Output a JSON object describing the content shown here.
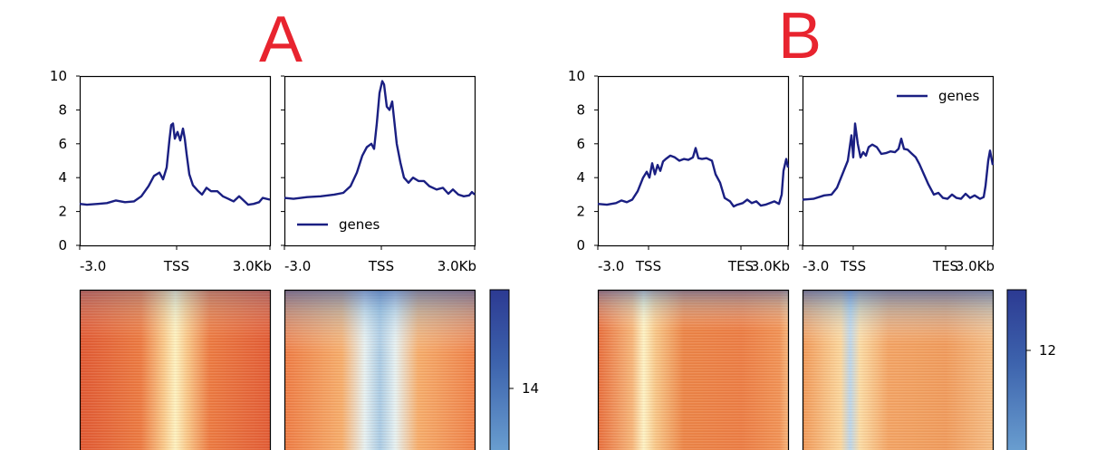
{
  "panels": [
    {
      "label": "A",
      "colorbar_tick": "14",
      "plots": [
        {
          "legend": "",
          "mode": "tss",
          "x_ticks": [
            "-3.0",
            "TSS",
            "3.0Kb"
          ],
          "profile": [
            [
              0,
              2.45
            ],
            [
              8,
              2.4
            ],
            [
              20,
              2.45
            ],
            [
              30,
              2.5
            ],
            [
              40,
              2.65
            ],
            [
              50,
              2.55
            ],
            [
              60,
              2.6
            ],
            [
              68,
              2.9
            ],
            [
              76,
              3.5
            ],
            [
              82,
              4.1
            ],
            [
              88,
              4.3
            ],
            [
              92,
              3.9
            ],
            [
              96,
              4.6
            ],
            [
              99,
              6.2
            ],
            [
              101,
              7.1
            ],
            [
              103,
              7.2
            ],
            [
              105,
              6.3
            ],
            [
              108,
              6.7
            ],
            [
              111,
              6.2
            ],
            [
              114,
              6.9
            ],
            [
              116,
              6.3
            ],
            [
              118,
              5.4
            ],
            [
              121,
              4.2
            ],
            [
              125,
              3.55
            ],
            [
              130,
              3.25
            ],
            [
              135,
              3.0
            ],
            [
              140,
              3.4
            ],
            [
              145,
              3.2
            ],
            [
              152,
              3.2
            ],
            [
              158,
              2.9
            ],
            [
              164,
              2.75
            ],
            [
              170,
              2.6
            ],
            [
              176,
              2.9
            ],
            [
              180,
              2.7
            ],
            [
              186,
              2.4
            ],
            [
              192,
              2.45
            ],
            [
              198,
              2.55
            ],
            [
              202,
              2.8
            ],
            [
              210,
              2.7
            ]
          ]
        },
        {
          "legend": "genes",
          "mode": "tss",
          "x_ticks": [
            "-3.0",
            "TSS",
            "3.0Kb"
          ],
          "profile": [
            [
              0,
              2.8
            ],
            [
              10,
              2.75
            ],
            [
              25,
              2.85
            ],
            [
              40,
              2.9
            ],
            [
              55,
              3.0
            ],
            [
              65,
              3.1
            ],
            [
              73,
              3.5
            ],
            [
              80,
              4.3
            ],
            [
              86,
              5.3
            ],
            [
              91,
              5.8
            ],
            [
              96,
              6.0
            ],
            [
              99,
              5.7
            ],
            [
              102,
              7.2
            ],
            [
              105,
              9.0
            ],
            [
              108,
              9.7
            ],
            [
              110,
              9.5
            ],
            [
              113,
              8.2
            ],
            [
              116,
              8.0
            ],
            [
              119,
              8.5
            ],
            [
              121,
              7.5
            ],
            [
              124,
              6.0
            ],
            [
              128,
              4.9
            ],
            [
              132,
              4.0
            ],
            [
              137,
              3.7
            ],
            [
              142,
              4.0
            ],
            [
              148,
              3.8
            ],
            [
              154,
              3.8
            ],
            [
              160,
              3.5
            ],
            [
              168,
              3.3
            ],
            [
              175,
              3.4
            ],
            [
              181,
              3.05
            ],
            [
              186,
              3.3
            ],
            [
              192,
              3.0
            ],
            [
              198,
              2.9
            ],
            [
              204,
              2.95
            ],
            [
              207,
              3.15
            ],
            [
              210,
              3.0
            ]
          ]
        }
      ]
    },
    {
      "label": "B",
      "colorbar_tick": "12",
      "plots": [
        {
          "legend": "",
          "mode": "tes",
          "x_ticks": [
            "-3.0",
            "TSS",
            "TES",
            "3.0Kb"
          ],
          "profile": [
            [
              0,
              2.45
            ],
            [
              10,
              2.4
            ],
            [
              20,
              2.5
            ],
            [
              26,
              2.65
            ],
            [
              32,
              2.55
            ],
            [
              38,
              2.7
            ],
            [
              44,
              3.2
            ],
            [
              50,
              4.0
            ],
            [
              54,
              4.35
            ],
            [
              57,
              4.0
            ],
            [
              60,
              4.85
            ],
            [
              63,
              4.2
            ],
            [
              66,
              4.75
            ],
            [
              69,
              4.4
            ],
            [
              72,
              4.95
            ],
            [
              75,
              5.1
            ],
            [
              80,
              5.3
            ],
            [
              85,
              5.2
            ],
            [
              90,
              5.0
            ],
            [
              95,
              5.1
            ],
            [
              100,
              5.05
            ],
            [
              105,
              5.2
            ],
            [
              108,
              5.75
            ],
            [
              111,
              5.15
            ],
            [
              115,
              5.1
            ],
            [
              120,
              5.15
            ],
            [
              126,
              5.0
            ],
            [
              130,
              4.2
            ],
            [
              135,
              3.7
            ],
            [
              140,
              2.8
            ],
            [
              146,
              2.6
            ],
            [
              150,
              2.3
            ],
            [
              154,
              2.4
            ],
            [
              160,
              2.5
            ],
            [
              165,
              2.7
            ],
            [
              170,
              2.5
            ],
            [
              175,
              2.6
            ],
            [
              180,
              2.35
            ],
            [
              185,
              2.4
            ],
            [
              190,
              2.5
            ],
            [
              195,
              2.6
            ],
            [
              200,
              2.45
            ],
            [
              203,
              3.0
            ],
            [
              205,
              4.4
            ],
            [
              208,
              5.1
            ],
            [
              210,
              4.6
            ]
          ]
        },
        {
          "legend": "genes",
          "mode": "tes",
          "x_ticks": [
            "-3.0",
            "TSS",
            "TES",
            "3.0Kb"
          ],
          "profile": [
            [
              0,
              2.7
            ],
            [
              12,
              2.75
            ],
            [
              24,
              2.95
            ],
            [
              32,
              3.0
            ],
            [
              38,
              3.4
            ],
            [
              44,
              4.2
            ],
            [
              50,
              5.0
            ],
            [
              54,
              6.5
            ],
            [
              56,
              5.2
            ],
            [
              58,
              7.2
            ],
            [
              61,
              6.0
            ],
            [
              64,
              5.2
            ],
            [
              67,
              5.5
            ],
            [
              70,
              5.3
            ],
            [
              73,
              5.8
            ],
            [
              77,
              5.95
            ],
            [
              82,
              5.8
            ],
            [
              87,
              5.4
            ],
            [
              92,
              5.45
            ],
            [
              97,
              5.55
            ],
            [
              102,
              5.5
            ],
            [
              106,
              5.7
            ],
            [
              109,
              6.3
            ],
            [
              112,
              5.7
            ],
            [
              116,
              5.65
            ],
            [
              120,
              5.45
            ],
            [
              125,
              5.2
            ],
            [
              129,
              4.8
            ],
            [
              134,
              4.2
            ],
            [
              139,
              3.6
            ],
            [
              145,
              3.0
            ],
            [
              150,
              3.1
            ],
            [
              155,
              2.8
            ],
            [
              160,
              2.75
            ],
            [
              165,
              3.0
            ],
            [
              170,
              2.8
            ],
            [
              175,
              2.75
            ],
            [
              180,
              3.05
            ],
            [
              185,
              2.8
            ],
            [
              190,
              2.95
            ],
            [
              196,
              2.75
            ],
            [
              200,
              2.85
            ],
            [
              202,
              3.5
            ],
            [
              205,
              5.0
            ],
            [
              207,
              5.6
            ],
            [
              210,
              4.75
            ]
          ]
        }
      ]
    }
  ],
  "y_ticks": [
    "0",
    "2",
    "4",
    "6",
    "8",
    "10"
  ],
  "colors": {
    "line": "#1a1f82",
    "label": "#e8242f"
  },
  "chart_data": {
    "type": "line",
    "ylim": [
      0,
      10
    ],
    "series": [
      {
        "name": "genes",
        "panel": "A",
        "position": "left",
        "x": [
          "-3.0",
          "TSS",
          "3.0Kb"
        ],
        "peak": 7.2
      },
      {
        "name": "genes",
        "panel": "A",
        "position": "right",
        "x": [
          "-3.0",
          "TSS",
          "3.0Kb"
        ],
        "peak": 9.7
      },
      {
        "name": "genes",
        "panel": "B",
        "position": "left",
        "x": [
          "-3.0",
          "TSS",
          "TES",
          "3.0Kb"
        ],
        "peak": 5.75
      },
      {
        "name": "genes",
        "panel": "B",
        "position": "right",
        "x": [
          "-3.0",
          "TSS",
          "TES",
          "3.0Kb"
        ],
        "peak": 7.2
      }
    ]
  }
}
